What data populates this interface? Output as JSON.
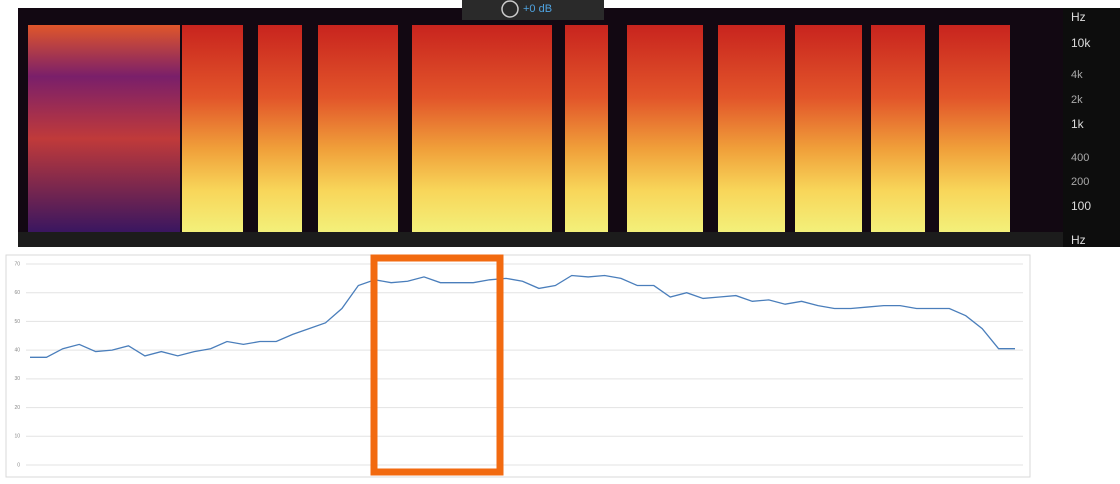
{
  "spectrogram": {
    "gain": "+0 dB",
    "labels": [
      "Hz",
      "10k",
      "4k",
      "2k",
      "1k",
      "400",
      "200",
      "100",
      "Hz"
    ]
  },
  "chart_data": {
    "type": "line",
    "categories": [
      null,
      null,
      null,
      null,
      null,
      null,
      null,
      null,
      null,
      null,
      null,
      null,
      null,
      null,
      null,
      null,
      null,
      null,
      null,
      null,
      null,
      null,
      null,
      null,
      null,
      null,
      null,
      null,
      null,
      null,
      null,
      null,
      null,
      null,
      null,
      null,
      null,
      null,
      null,
      null,
      null,
      null,
      null,
      null,
      null,
      null,
      null,
      null,
      null,
      null,
      null,
      null,
      null,
      null,
      null,
      null,
      null,
      null,
      null,
      null,
      null
    ],
    "series": [
      {
        "color": "#4a7ebb",
        "values": [
          37.5,
          37.5,
          40.5,
          42,
          39.5,
          40,
          41.5,
          38,
          39.5,
          38,
          39.5,
          40.5,
          43,
          42,
          43,
          43,
          45.5,
          47.5,
          49.5,
          54.5,
          62.5,
          64.5,
          63.5,
          64,
          65.5,
          63.5,
          63.5,
          63.5,
          64.5,
          65,
          64,
          61.5,
          62.5,
          66,
          65.5,
          66,
          65,
          62.5,
          62.5,
          58.5,
          60,
          58,
          58.5,
          59,
          57,
          57.5,
          56,
          57,
          55.5,
          54.5,
          54.5,
          55,
          55.5,
          55.5,
          54.5,
          54.5,
          54.5,
          52,
          47.5,
          40.5,
          40.5
        ]
      }
    ],
    "ylim": [
      0,
      70
    ],
    "yticks": [
      0,
      10,
      20,
      30,
      40,
      50,
      60,
      70
    ],
    "grid": true
  }
}
